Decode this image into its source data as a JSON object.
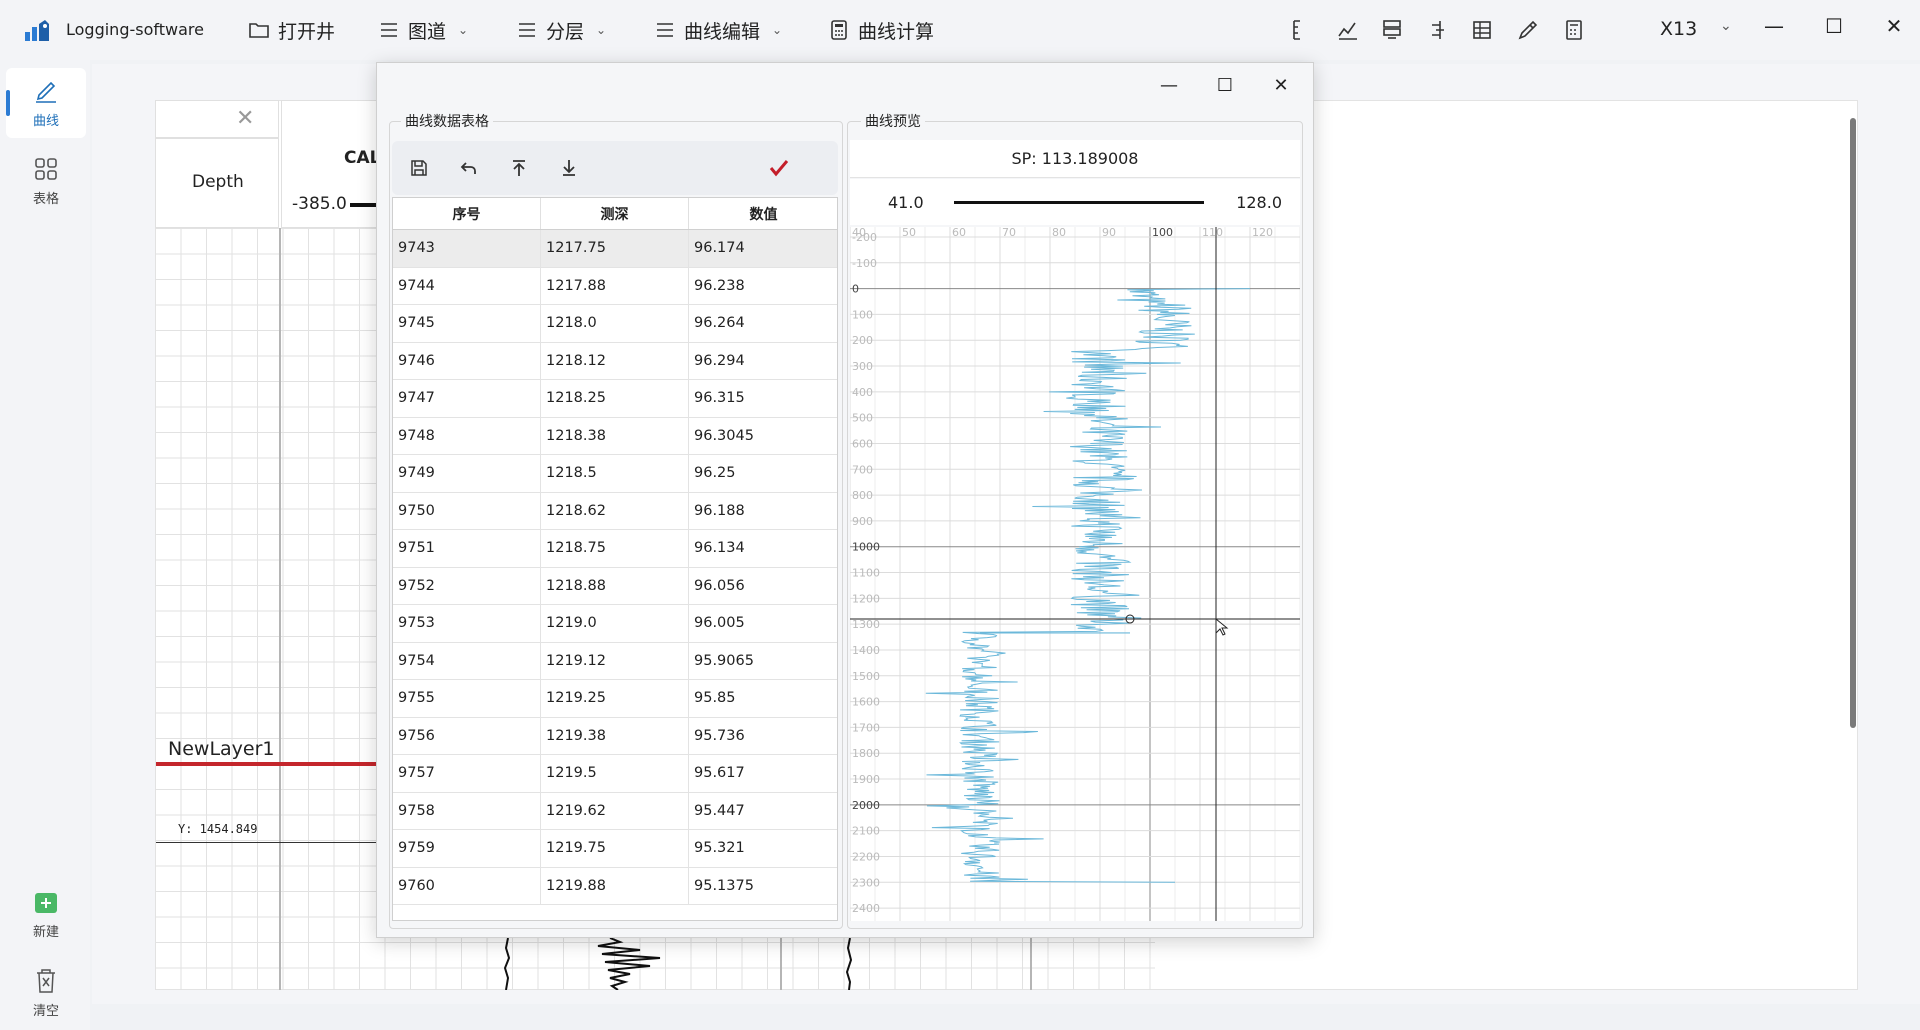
{
  "app": {
    "title": "Logging-software",
    "window_name": "X13"
  },
  "menu": [
    {
      "label": "打开井",
      "icon": "folder-icon",
      "dropdown": false
    },
    {
      "label": "图道",
      "icon": "list-icon",
      "dropdown": true
    },
    {
      "label": "分层",
      "icon": "list-icon",
      "dropdown": true
    },
    {
      "label": "曲线编辑",
      "icon": "list-icon",
      "dropdown": true
    },
    {
      "label": "曲线计算",
      "icon": "calculator-icon",
      "dropdown": false
    }
  ],
  "sidebar": {
    "curve": "曲线",
    "table": "表格",
    "new": "新建",
    "clear": "清空"
  },
  "track": {
    "depth_label": "Depth",
    "cal_label": "CAL",
    "cal_min": "-385.0",
    "layer_name": "NewLayer1",
    "y_readout": "Y: 1454.849"
  },
  "dialog": {
    "table_group_title": "曲线数据表格",
    "preview_group_title": "曲线预览",
    "columns": [
      "序号",
      "测深",
      "数值"
    ],
    "rows": [
      [
        "9743",
        "1217.75",
        "96.174"
      ],
      [
        "9744",
        "1217.88",
        "96.238"
      ],
      [
        "9745",
        "1218.0",
        "96.264"
      ],
      [
        "9746",
        "1218.12",
        "96.294"
      ],
      [
        "9747",
        "1218.25",
        "96.315"
      ],
      [
        "9748",
        "1218.38",
        "96.3045"
      ],
      [
        "9749",
        "1218.5",
        "96.25"
      ],
      [
        "9750",
        "1218.62",
        "96.188"
      ],
      [
        "9751",
        "1218.75",
        "96.134"
      ],
      [
        "9752",
        "1218.88",
        "96.056"
      ],
      [
        "9753",
        "1219.0",
        "96.005"
      ],
      [
        "9754",
        "1219.12",
        "95.9065"
      ],
      [
        "9755",
        "1219.25",
        "95.85"
      ],
      [
        "9756",
        "1219.38",
        "95.736"
      ],
      [
        "9757",
        "1219.5",
        "95.617"
      ],
      [
        "9758",
        "1219.62",
        "95.447"
      ],
      [
        "9759",
        "1219.75",
        "95.321"
      ],
      [
        "9760",
        "1219.88",
        "95.1375"
      ]
    ],
    "preview": {
      "title": "SP: 113.189008",
      "min": "41.0",
      "max": "128.0",
      "x_ticks": [
        "40",
        "50",
        "60",
        "70",
        "80",
        "90",
        "100",
        "110",
        "120"
      ],
      "y_ticks": [
        "-200",
        "-100",
        "0",
        "100",
        "200",
        "300",
        "400",
        "500",
        "600",
        "700",
        "800",
        "900",
        "1000",
        "1100",
        "1200",
        "1300",
        "1400",
        "1500",
        "1600",
        "1700",
        "1800",
        "1900",
        "2000",
        "2100",
        "2200",
        "2300",
        "2400"
      ],
      "curve_color": "#6bb8da"
    }
  }
}
